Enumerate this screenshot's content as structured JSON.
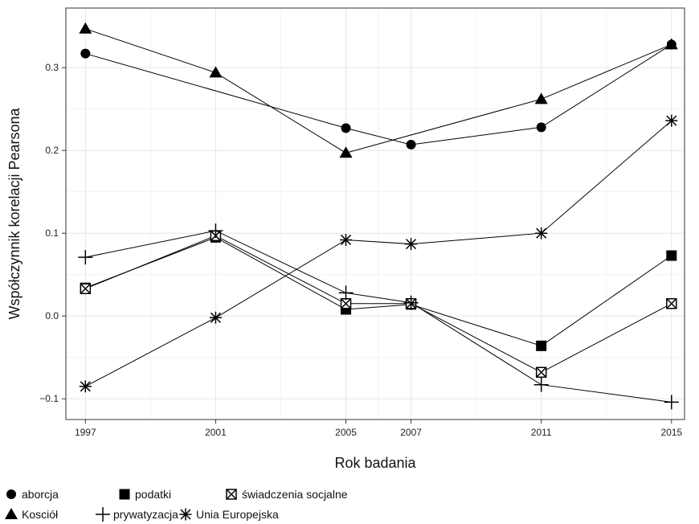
{
  "chart_data": {
    "type": "line",
    "title": "",
    "xlabel": "Rok badania",
    "ylabel": "Współczynnik korelacji Pearsona",
    "x": [
      1997,
      2001,
      2005,
      2007,
      2011,
      2015
    ],
    "x_ticks": [
      "1997",
      "2001",
      "2005",
      "2007",
      "2011",
      "2015"
    ],
    "y_ticks": [
      -0.1,
      0.0,
      0.1,
      0.2,
      0.3
    ],
    "y_tick_labels": [
      "−0.1",
      "0.0",
      "0.1",
      "0.2",
      "0.3"
    ],
    "xlim": [
      1996.4,
      2015.4
    ],
    "ylim": [
      -0.125,
      0.372
    ],
    "grid": true,
    "legend_position": "bottom-left",
    "series": [
      {
        "name": "aborcja",
        "marker": "circle",
        "values": [
          0.317,
          null,
          0.227,
          0.207,
          0.228,
          0.328
        ]
      },
      {
        "name": "podatki",
        "marker": "square",
        "values": [
          0.034,
          0.095,
          0.008,
          0.014,
          -0.036,
          0.073
        ]
      },
      {
        "name": "świadczenia socjalne",
        "marker": "boxed-x",
        "values": [
          0.033,
          0.097,
          0.015,
          0.015,
          -0.068,
          0.015
        ]
      },
      {
        "name": "Kosciół",
        "marker": "triangle",
        "values": [
          0.347,
          0.294,
          0.197,
          null,
          0.262,
          0.328
        ]
      },
      {
        "name": "prywatyzacja",
        "marker": "plus",
        "values": [
          0.071,
          0.103,
          0.028,
          0.016,
          -0.083,
          -0.104
        ]
      },
      {
        "name": "Unia Europejska",
        "marker": "asterisk",
        "values": [
          -0.085,
          -0.002,
          0.092,
          0.087,
          0.1,
          0.236
        ]
      }
    ],
    "colors": {
      "line": "#000000",
      "grid": "#e6e6e6",
      "frame": "#333333"
    }
  }
}
